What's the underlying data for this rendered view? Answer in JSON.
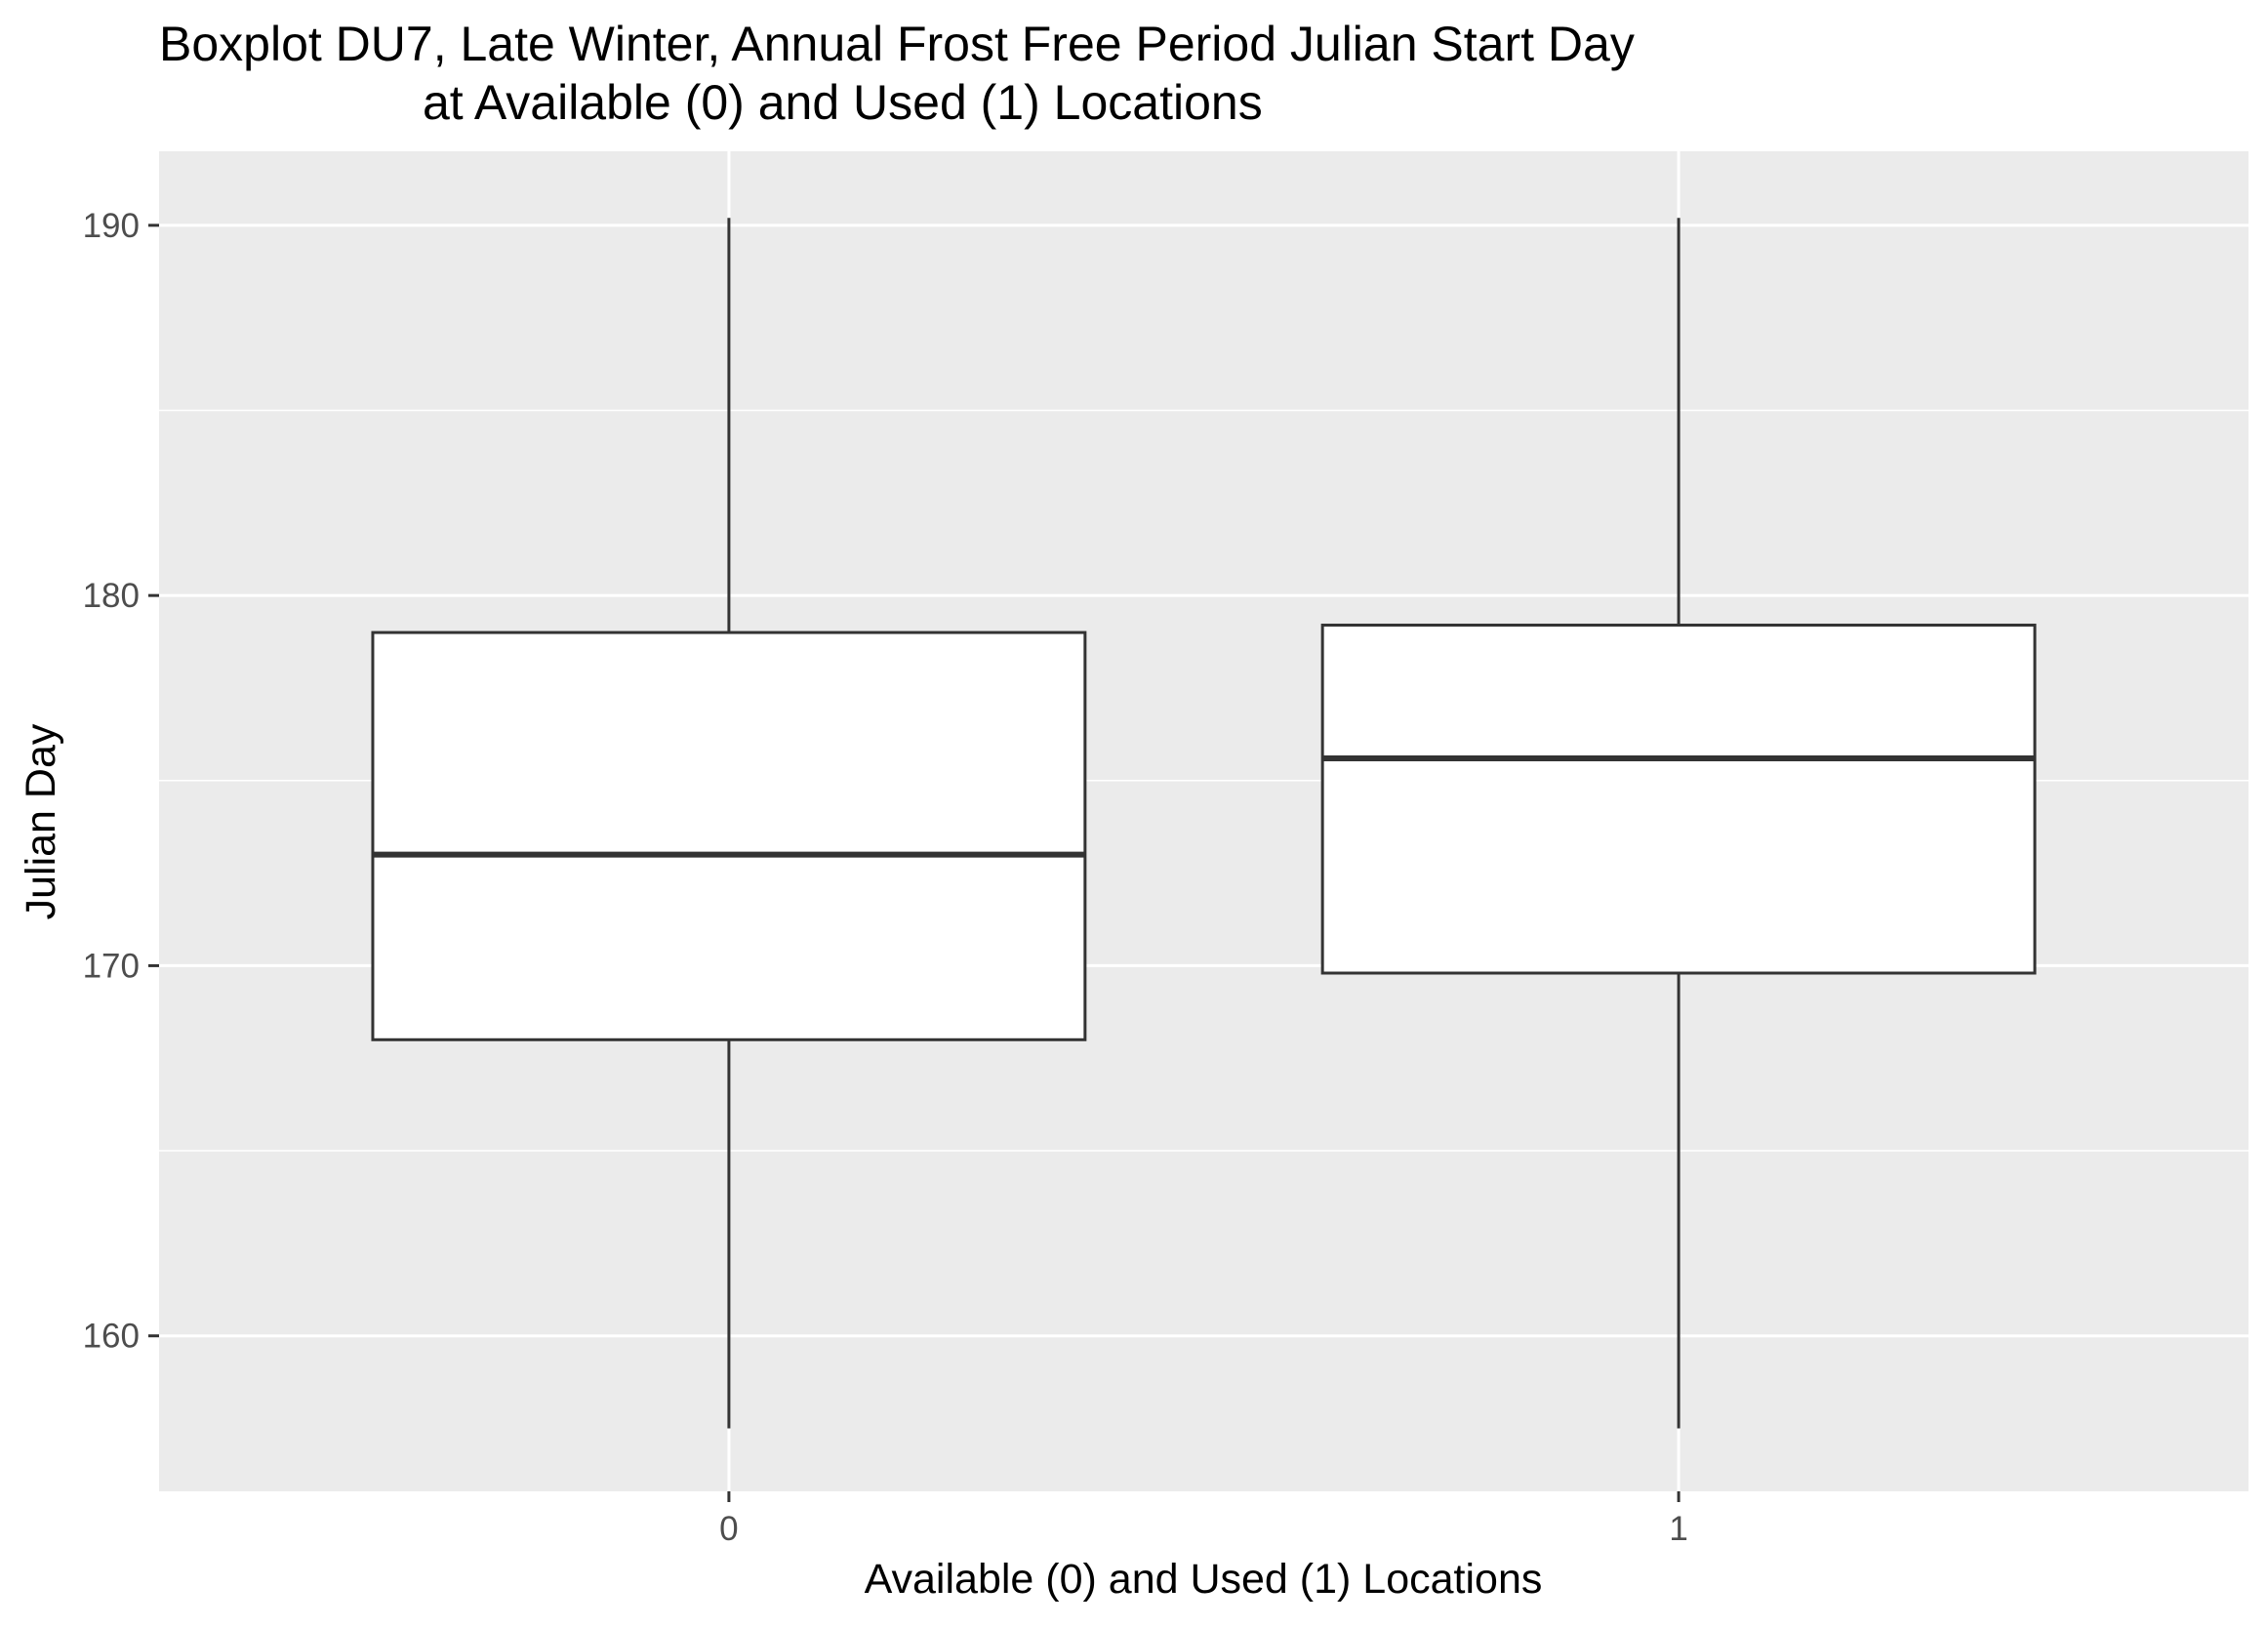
{
  "chart_data": {
    "type": "boxplot",
    "title_lines": [
      "Boxplot DU7, Late Winter, Annual Frost Free Period Julian Start Day",
      "at Available (0) and Used (1) Locations"
    ],
    "xlabel": "Available (0) and Used (1) Locations",
    "ylabel": "Julian Day",
    "categories": [
      "0",
      "1"
    ],
    "boxes": [
      {
        "category": "0",
        "min": 157.5,
        "q1": 168,
        "median": 173,
        "q3": 179,
        "max": 190.2
      },
      {
        "category": "1",
        "min": 157.5,
        "q1": 169.8,
        "median": 175.6,
        "q3": 179.2,
        "max": 190.2
      }
    ],
    "y_ticks": [
      160,
      170,
      180,
      190
    ],
    "y_minor_ticks": [
      165,
      175,
      185
    ],
    "ylim": [
      155.8,
      192.0
    ],
    "grid": true,
    "legend": "none"
  },
  "colors": {
    "panel_background": "#ebebeb",
    "grid_major": "#ffffff",
    "grid_minor": "#ffffff",
    "box_fill": "#ffffff",
    "box_stroke": "#333333",
    "tick_mark": "#333333",
    "tick_label": "#4d4d4d",
    "title_text": "#000000"
  }
}
